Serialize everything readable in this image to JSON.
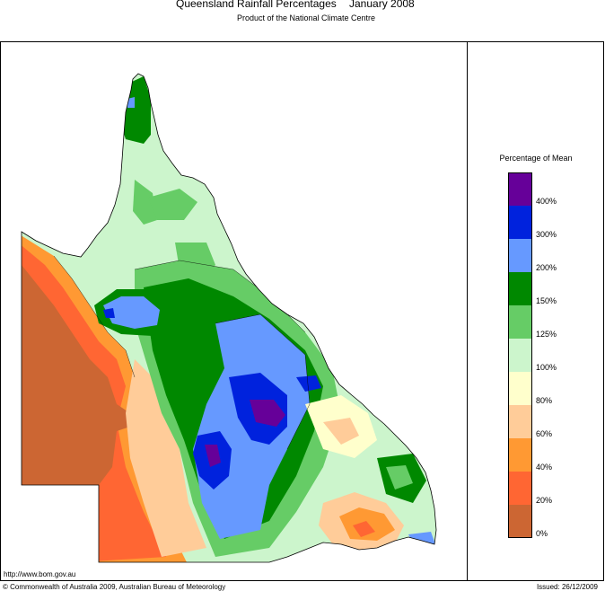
{
  "header": {
    "title": "Queensland Rainfall Percentages",
    "period": "January 2008",
    "subtitle": "Product of the National Climate Centre"
  },
  "legend": {
    "title": "Percentage of Mean",
    "items": [
      {
        "label": "400%",
        "color": "#660099"
      },
      {
        "label": "300%",
        "color": "#0022dd"
      },
      {
        "label": "200%",
        "color": "#6699ff"
      },
      {
        "label": "150%",
        "color": "#008800"
      },
      {
        "label": "125%",
        "color": "#66cc66"
      },
      {
        "label": "100%",
        "color": "#ccf5cc"
      },
      {
        "label": "80%",
        "color": "#ffffcc"
      },
      {
        "label": "60%",
        "color": "#ffcc99"
      },
      {
        "label": "40%",
        "color": "#ff9933"
      },
      {
        "label": "20%",
        "color": "#ff6633"
      },
      {
        "label": "0%",
        "color": "#cc6633"
      }
    ]
  },
  "footer": {
    "url": "http://www.bom.gov.au",
    "copyright": "© Commonwealth of Australia 2009, Australian Bureau of Meteorology",
    "issued": "Issued: 26/12/2009"
  }
}
